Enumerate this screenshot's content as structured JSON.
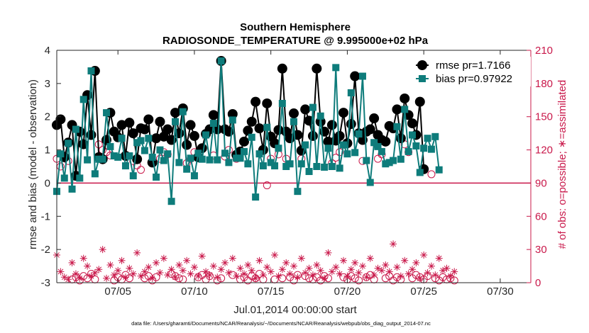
{
  "chart_data": {
    "type": "line",
    "title": "Southern Hemisphere",
    "subtitle": "RADIOSONDE_TEMPERATURE @ 9.995000e+02 hPa",
    "xlabel": "Jul.01,2014 00:00:00 start",
    "ylabel": "rmse and bias (model - observation)",
    "ylabel_right": "# of obs: o=possible; ∗=assimilated",
    "footnote": "data file: /Users/gharamti/Documents/NCAR/Reanalysis/~/Documents/NCAR/Reanalysis/webpub/obs_diag_output_2014-07.nc",
    "xlim": [
      1,
      32
    ],
    "ylim": [
      -3,
      4
    ],
    "ylim_right": [
      0,
      210
    ],
    "xticks": [
      5,
      10,
      15,
      20,
      25,
      30
    ],
    "xtick_labels": [
      "07/05",
      "07/10",
      "07/15",
      "07/20",
      "07/25",
      "07/30"
    ],
    "yticks": [
      -3,
      -2,
      -1,
      0,
      1,
      2,
      3,
      4
    ],
    "yticks_right": [
      0,
      30,
      60,
      90,
      120,
      150,
      180,
      210
    ],
    "grid": false,
    "legend_position": "top-right",
    "colors": {
      "rmse": "#000000",
      "bias": "#0e7c7b",
      "obs": "#c9184a",
      "zero_line": "#c9184a"
    },
    "series": [
      {
        "name": "rmse",
        "legend": "rmse pr=1.7166",
        "x_start": 1.0,
        "x_step": 0.25,
        "values": [
          1.75,
          1.92,
          0.78,
          1.22,
          1.75,
          0.22,
          1.55,
          1.17,
          2.65,
          1.45,
          3.38,
          0.78,
          0.72,
          1.3,
          2.12,
          1.55,
          1.38,
          1.75,
          0.82,
          1.82,
          1.5,
          0.72,
          1.65,
          1.62,
          1.92,
          0.62,
          1.35,
          1.85,
          1.4,
          1.62,
          1.3,
          2.12,
          1.5,
          2.25,
          1.15,
          1.75,
          1.42,
          0.78,
          1.05,
          1.48,
          1.62,
          2.05,
          1.62,
          3.68,
          1.62,
          1.55,
          2.08,
          0.85,
          0.95,
          1.25,
          1.58,
          1.85,
          2.45,
          1.65,
          1.0,
          2.4,
          1.4,
          1.2,
          1.6,
          3.45,
          1.55,
          1.35,
          2.1,
          1.45,
          0.98,
          2.22,
          1.88,
          1.42,
          3.45,
          1.85,
          1.55,
          1.25,
          1.75,
          1.28,
          1.42,
          2.12,
          1.2,
          1.78,
          3.22,
          1.5,
          1.3,
          1.55,
          1.62,
          1.95,
          1.45,
          1.3,
          1.25,
          1.72,
          1.65,
          2.22,
          1.35,
          2.55,
          2.05,
          1.8,
          1.45,
          2.45,
          0.42
        ]
      },
      {
        "name": "bias",
        "legend": "bias pr=0.97922",
        "x_start": 1.0,
        "x_step": 0.25,
        "values": [
          -0.25,
          0.88,
          0.15,
          1.2,
          -0.18,
          1.62,
          0.15,
          2.52,
          0.7,
          3.38,
          0.28,
          0.72,
          0.72,
          2.12,
          1.1,
          0.82,
          0.78,
          1.35,
          0.52,
          0.82,
          0.22,
          1.22,
          1.28,
          0.98,
          1.35,
          0.78,
          0.18,
          1.0,
          0.68,
          0.88,
          -0.55,
          1.85,
          0.62,
          2.15,
          0.42,
          0.75,
          0.22,
          0.9,
          0.72,
          1.45,
          0.7,
          1.8,
          0.7,
          3.68,
          0.9,
          0.62,
          1.9,
          0.75,
          0.75,
          0.95,
          0.58,
          1.38,
          -0.42,
          0.88,
          0.52,
          1.68,
          0.62,
          0.52,
          1.05,
          2.4,
          0.5,
          0.58,
          1.85,
          -0.25,
          0.58,
          1.15,
          0.35,
          2.28,
          0.5,
          2.02,
          0.48,
          1.05,
          0.5,
          3.48,
          0.45,
          1.15,
          0.88,
          2.72,
          0.92,
          1.48,
          3.22,
          0.68,
          0.02,
          1.22,
          1.1,
          0.95,
          0.58,
          0.62,
          0.68,
          1.7,
          0.72,
          2.22,
          0.95,
          1.45,
          1.12,
          0.32,
          1.05,
          1.35,
          1.02,
          1.4,
          0.4
        ]
      },
      {
        "name": "possible",
        "legend": "",
        "x_start": 1.0,
        "x_step": 0.25,
        "values": [
          112,
          105,
          115,
          110,
          3,
          5,
          2,
          6,
          4,
          8,
          3,
          125,
          120,
          118,
          115,
          2,
          5,
          3,
          7,
          4,
          110,
          106,
          102,
          4,
          6,
          2,
          5,
          112,
          118,
          116,
          8,
          6,
          4,
          3,
          108,
          112,
          118,
          5,
          7,
          3,
          6,
          115,
          2,
          4,
          114,
          120,
          7,
          112,
          3,
          5,
          2,
          6,
          4,
          8,
          3,
          88,
          112,
          3,
          116,
          4,
          112,
          5,
          2,
          7,
          112,
          6,
          4,
          3,
          5,
          2,
          6,
          4,
          108,
          113,
          118,
          5,
          3,
          6,
          4,
          2,
          110,
          5,
          7,
          3,
          112,
          116,
          4,
          6,
          2,
          5,
          3,
          125,
          118,
          4,
          7,
          5,
          3,
          6,
          98,
          4,
          2,
          5,
          3,
          4,
          2
        ]
      },
      {
        "name": "assimilated",
        "legend": "",
        "x_start": 1.0,
        "x_step": 0.25,
        "values": [
          25,
          10,
          5,
          3,
          18,
          8,
          4,
          22,
          15,
          6,
          9,
          12,
          30,
          4,
          16,
          7,
          11,
          20,
          5,
          13,
          8,
          27,
          6,
          10,
          14,
          4,
          18,
          9,
          22,
          7,
          12,
          5,
          16,
          11,
          20,
          8,
          14,
          6,
          24,
          10,
          7,
          15,
          5,
          12,
          18,
          9,
          22,
          6,
          13,
          8,
          16,
          11,
          4,
          20,
          7,
          14,
          10,
          25,
          6,
          12,
          18,
          8,
          15,
          5,
          22,
          9,
          13,
          7,
          16,
          11,
          4,
          27,
          10,
          14,
          8,
          20,
          6,
          12,
          18,
          9,
          15,
          5,
          22,
          7,
          13,
          11,
          16,
          10,
          35,
          14,
          6,
          20,
          8,
          12,
          18,
          4,
          25,
          9,
          15,
          7,
          22,
          11,
          13,
          6,
          10
        ]
      }
    ]
  }
}
